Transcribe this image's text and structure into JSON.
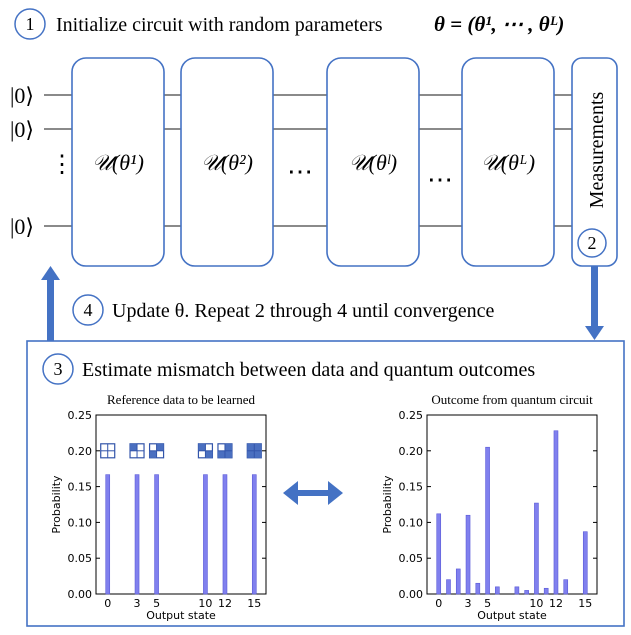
{
  "step1": {
    "number": "1",
    "text": "Initialize circuit with random parameters",
    "formula": "θ = (θ¹, ⋯ , θᴸ)"
  },
  "step2": {
    "number": "2",
    "label": "Measurements"
  },
  "step3": {
    "number": "3",
    "text": "Estimate mismatch between data and quantum outcomes"
  },
  "step4": {
    "number": "4",
    "text": "Update θ. Repeat 2 through 4 until convergence"
  },
  "circuit": {
    "kets": [
      "|0⟩",
      "|0⟩",
      "⋮",
      "|0⟩"
    ],
    "blocks": [
      "𝒰(θ¹)",
      "𝒰(θ²)",
      "𝒰(θˡ)",
      "𝒰(θᴸ)"
    ],
    "ellipsis": "⋯"
  },
  "colors": {
    "accent": "#4472c4",
    "bar": "#8080ee",
    "bar_edge": "#5a5ad8"
  },
  "chart_data": [
    {
      "type": "bar",
      "title": "Reference data to be learned",
      "xlabel": "Output state",
      "ylabel": "Probability",
      "ylim": [
        0,
        0.25
      ],
      "yticks": [
        "0.00",
        "0.05",
        "0.10",
        "0.15",
        "0.20",
        "0.25"
      ],
      "xticks": [
        "0",
        "3",
        "5",
        "10",
        "12",
        "15"
      ],
      "x": [
        0,
        3,
        5,
        10,
        12,
        15
      ],
      "values": [
        0.1667,
        0.1667,
        0.1667,
        0.1667,
        0.1667,
        0.1667
      ],
      "grid_icons_y": 0.2
    },
    {
      "type": "bar",
      "title": "Outcome from quantum circuit",
      "xlabel": "Output state",
      "ylabel": "Probability",
      "ylim": [
        0,
        0.25
      ],
      "yticks": [
        "0.00",
        "0.05",
        "0.10",
        "0.15",
        "0.20",
        "0.25"
      ],
      "xticks": [
        "0",
        "3",
        "5",
        "10",
        "12",
        "15"
      ],
      "x": [
        0,
        1,
        2,
        3,
        4,
        5,
        6,
        7,
        8,
        9,
        10,
        11,
        12,
        13,
        14,
        15
      ],
      "values": [
        0.112,
        0.02,
        0.035,
        0.11,
        0.015,
        0.205,
        0.01,
        0.0,
        0.01,
        0.005,
        0.127,
        0.008,
        0.228,
        0.02,
        0.0,
        0.087
      ]
    }
  ]
}
